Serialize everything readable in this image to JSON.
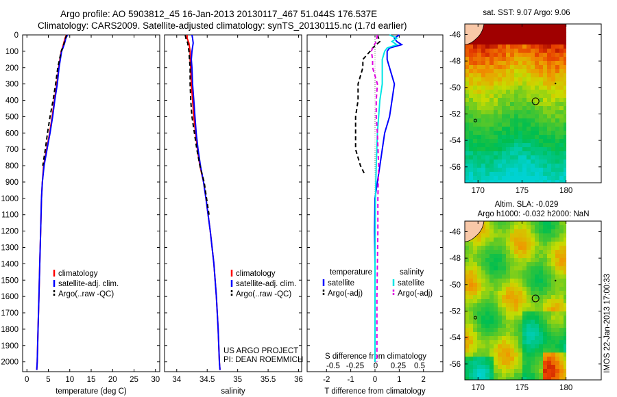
{
  "header": {
    "line1": "Argo profile: AO 5903812_45 16-Jan-2013 20130117_467 51.044S 176.537E",
    "line2": "Climatology: CARS2009. Satellite-adjusted climatology: synTS_20130115.nc (1.7d earlier)"
  },
  "colors": {
    "climatology": "#ff0000",
    "satellite": "#0000ff",
    "argo": "#000000",
    "salinity_satellite": "#00e5e5",
    "salinity_argo": "#e000e0",
    "land": "#f8c8a8"
  },
  "depth_ticks": [
    0,
    100,
    200,
    300,
    400,
    500,
    600,
    700,
    800,
    900,
    1000,
    1100,
    1200,
    1300,
    1400,
    1500,
    1600,
    1700,
    1800,
    1900,
    2000
  ],
  "chart_data": [
    {
      "type": "line",
      "panel": "temperature",
      "xlabel": "temperature (deg C)",
      "xticks": [
        "0",
        "5",
        "10",
        "15",
        "20",
        "25",
        "30"
      ],
      "xlim": [
        -1,
        31
      ],
      "ylim": [
        2060,
        0
      ],
      "legend": [
        "climatology",
        "satellite-adj. clim.",
        "Argo(..raw -QC)"
      ],
      "series": [
        {
          "name": "climatology",
          "depth": [
            0,
            20,
            50,
            80,
            100,
            150,
            200,
            300,
            400,
            500,
            600,
            700,
            800,
            900,
            1000,
            1200,
            1400,
            1600,
            1800,
            2000,
            2050
          ],
          "values": [
            9.2,
            8.9,
            8.6,
            8.3,
            8.0,
            7.7,
            7.4,
            7.0,
            6.4,
            5.9,
            5.3,
            4.6,
            3.9,
            3.6,
            3.4,
            3.2,
            3.0,
            2.8,
            2.6,
            2.4,
            2.3
          ]
        },
        {
          "name": "satellite-adj. clim.",
          "depth": [
            0,
            20,
            50,
            80,
            100,
            150,
            200,
            300,
            400,
            500,
            600,
            700,
            800,
            900,
            1000,
            1200,
            1400,
            1600,
            1800,
            2000,
            2050
          ],
          "values": [
            9.5,
            9.1,
            8.8,
            8.4,
            8.1,
            7.8,
            7.5,
            7.1,
            6.5,
            6.0,
            5.4,
            4.7,
            4.0,
            3.6,
            3.4,
            3.2,
            3.0,
            2.8,
            2.6,
            2.4,
            2.3
          ]
        },
        {
          "name": "Argo(..raw -QC)",
          "depth": [
            0,
            20,
            50,
            80,
            100,
            150,
            200,
            300,
            400,
            500,
            600,
            700,
            800
          ],
          "values": [
            9.3,
            9.0,
            8.7,
            8.3,
            8.0,
            7.6,
            7.2,
            6.7,
            6.1,
            5.4,
            4.8,
            4.3,
            3.7
          ]
        }
      ]
    },
    {
      "type": "line",
      "panel": "salinity",
      "xlabel": "salinity",
      "xticks": [
        "34",
        "34.5",
        "35",
        "35.5",
        "36"
      ],
      "xlim": [
        33.8,
        36.05
      ],
      "ylim": [
        2060,
        0
      ],
      "legend": [
        "climatology",
        "satellite-adj. clim.",
        "Argo(..raw -QC)"
      ],
      "series": [
        {
          "name": "climatology",
          "depth": [
            0,
            20,
            50,
            100,
            150,
            200,
            300,
            400,
            500,
            600,
            700,
            800,
            900,
            1000,
            1200,
            1400,
            1600,
            1800,
            2000,
            2050
          ],
          "values": [
            34.17,
            34.17,
            34.2,
            34.22,
            34.22,
            34.23,
            34.24,
            34.26,
            34.28,
            34.31,
            34.34,
            34.38,
            34.44,
            34.48,
            34.55,
            34.61,
            34.65,
            34.68,
            34.7,
            34.71
          ]
        },
        {
          "name": "satellite-adj. clim.",
          "depth": [
            0,
            20,
            50,
            100,
            150,
            200,
            300,
            400,
            500,
            600,
            700,
            800,
            900,
            1000,
            1200,
            1400,
            1600,
            1800,
            2000,
            2050
          ],
          "values": [
            34.25,
            34.26,
            34.27,
            34.25,
            34.24,
            34.25,
            34.26,
            34.28,
            34.3,
            34.32,
            34.35,
            34.39,
            34.44,
            34.48,
            34.55,
            34.61,
            34.65,
            34.68,
            34.7,
            34.71
          ]
        },
        {
          "name": "Argo(..raw -QC)",
          "depth": [
            0,
            20,
            50,
            100,
            150,
            200,
            300,
            400,
            500,
            600,
            700,
            800,
            900,
            1000,
            1100
          ],
          "values": [
            34.14,
            34.15,
            34.18,
            34.2,
            34.21,
            34.22,
            34.22,
            34.23,
            34.25,
            34.29,
            34.33,
            34.38,
            34.45,
            34.49,
            34.53
          ]
        }
      ]
    },
    {
      "type": "line",
      "panel": "difference",
      "xlabel": "T difference from climatology",
      "xticks": [
        "-2",
        "-1",
        "0",
        "1",
        "2"
      ],
      "s_label": "S difference from climatology",
      "s_ticks": [
        "-0.5",
        "-0.25",
        "0",
        "0.25",
        "0.5"
      ],
      "xlim": [
        -2.8,
        2.8
      ],
      "ylim": [
        2060,
        0
      ],
      "legend_titles": [
        "temperature",
        "salinity"
      ],
      "legend_temperature": [
        "satellite",
        "Argo(-adj)"
      ],
      "legend_salinity": [
        "satellite",
        "Argo(-adj)"
      ],
      "series": [
        {
          "name": "temperature satellite",
          "depth": [
            0,
            20,
            40,
            60,
            80,
            100,
            150,
            200,
            300,
            400,
            500,
            600,
            700,
            800,
            900,
            1000,
            1200,
            1400,
            1600,
            1800,
            2000
          ],
          "values": [
            1.0,
            0.8,
            0.9,
            1.1,
            0.6,
            0.5,
            0.5,
            0.6,
            0.8,
            0.7,
            0.6,
            0.4,
            0.3,
            0.2,
            0.1,
            0.0,
            -0.02,
            0.0,
            0.0,
            0.0,
            0.0
          ]
        },
        {
          "name": "temperature Argo(-adj)",
          "depth": [
            0,
            40,
            80,
            100,
            150,
            200,
            300,
            400,
            500,
            600,
            700,
            800,
            860
          ],
          "values": [
            0.1,
            0.2,
            -0.1,
            -0.2,
            -0.5,
            -0.5,
            -0.7,
            -0.7,
            -0.8,
            -0.8,
            -0.8,
            -0.6,
            -0.4
          ]
        },
        {
          "name": "salinity satellite",
          "depth": [
            0,
            20,
            40,
            60,
            80,
            100,
            150,
            200,
            300,
            400,
            500,
            600,
            800,
            1000,
            1400,
            1800,
            2000
          ],
          "values": [
            0.6,
            0.9,
            0.7,
            0.9,
            0.5,
            0.4,
            0.3,
            0.3,
            0.3,
            0.2,
            0.15,
            0.1,
            0.05,
            0.02,
            0.0,
            0.0,
            0.0
          ]
        },
        {
          "name": "salinity Argo(-adj)",
          "depth": [
            0,
            40,
            80,
            100,
            150,
            200,
            300,
            400,
            500,
            600,
            800,
            1000,
            1200,
            1400,
            1600,
            1800,
            2000
          ],
          "values": [
            0.1,
            0.05,
            -0.1,
            -0.15,
            -0.1,
            -0.1,
            0.1,
            0.05,
            0.05,
            0.1,
            0.15,
            0.12,
            0.12,
            0.1,
            0.08,
            0.08,
            0.08
          ]
        }
      ]
    },
    {
      "type": "heatmap",
      "panel": "sst_map",
      "title": "sat. SST: 9.07  Argo: 9.06",
      "xticks": [
        "170",
        "175",
        "180"
      ],
      "yticks": [
        "-46",
        "-48",
        "-50",
        "-52",
        "-54",
        "-56"
      ],
      "xlim": [
        168.5,
        184
      ],
      "ylim": [
        -57.2,
        -45.2
      ],
      "float_position": [
        176.537,
        -51.044
      ]
    },
    {
      "type": "heatmap",
      "panel": "sla_map",
      "title_line1": "Altim. SLA: -0.029",
      "title_line2": "Argo h1000: -0.032 h2000: NaN",
      "xticks": [
        "170",
        "175",
        "180"
      ],
      "yticks": [
        "-46",
        "-48",
        "-50",
        "-52",
        "-54",
        "-56"
      ],
      "xlim": [
        168.5,
        184
      ],
      "ylim": [
        -57.2,
        -45.2
      ],
      "float_position": [
        176.537,
        -51.044
      ]
    }
  ],
  "footer": {
    "project_line1": "US ARGO PROJECT",
    "project_line2": "PI: DEAN ROEMMICH",
    "stamp": "IMOS 22-Jan-2013 17:00:33"
  }
}
